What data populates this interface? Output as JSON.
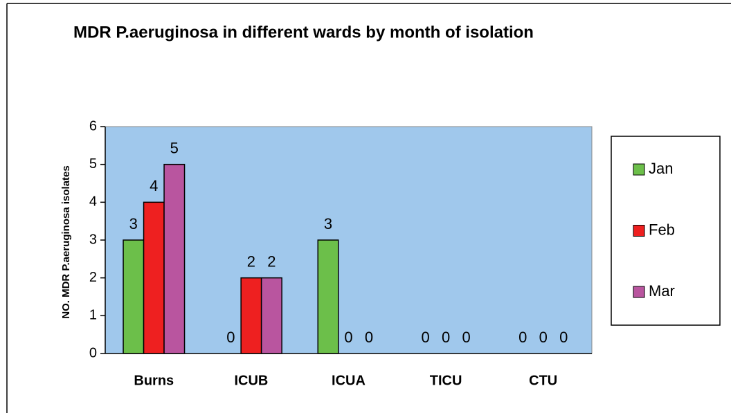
{
  "chart_data": {
    "type": "bar",
    "title": "MDR P.aeruginosa in different wards by month of isolation",
    "y_label": "NO. MDR P.aeruginosa isolates",
    "categories": [
      "Burns",
      "ICUB",
      "ICUA",
      "TICU",
      "CTU"
    ],
    "series": [
      {
        "name": "Jan",
        "color": "#6cbf4a",
        "values": [
          3,
          0,
          3,
          0,
          0
        ]
      },
      {
        "name": "Feb",
        "color": "#ee2020",
        "values": [
          4,
          2,
          0,
          0,
          0
        ]
      },
      {
        "name": "Mar",
        "color": "#b9559f",
        "values": [
          5,
          2,
          0,
          0,
          0
        ]
      }
    ],
    "ylim": [
      0,
      6
    ],
    "yticks": [
      0,
      1,
      2,
      3,
      4,
      5,
      6
    ],
    "plot_color": "#a0c8ec",
    "legend": "right"
  }
}
